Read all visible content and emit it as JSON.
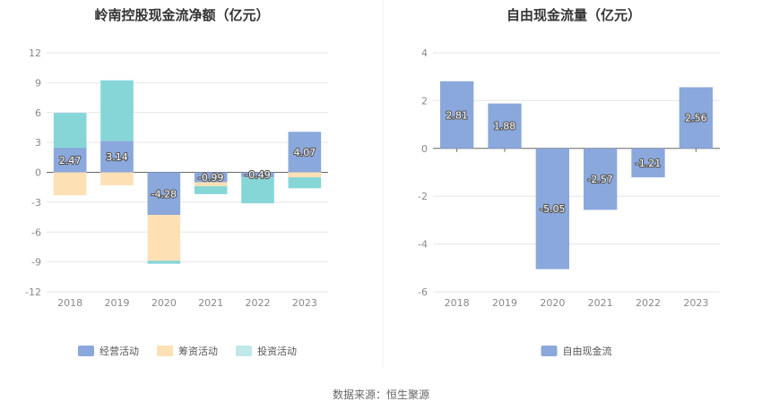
{
  "source": "数据来源：恒生聚源",
  "chart_data": [
    {
      "type": "bar",
      "stacked": true,
      "title": "岭南控股现金流净额（亿元）",
      "categories": [
        "2018",
        "2019",
        "2020",
        "2021",
        "2022",
        "2023"
      ],
      "ylim": [
        -12,
        12
      ],
      "yticks": [
        12,
        9,
        6,
        3,
        0,
        -3,
        -6,
        -9,
        -12
      ],
      "grid": true,
      "legend_position": "bottom",
      "series": [
        {
          "name": "经营活动",
          "color": "#8aa8dc",
          "values": [
            2.47,
            3.14,
            -4.28,
            -0.99,
            -0.49,
            4.07
          ],
          "labels": [
            "2.47",
            "3.14",
            "-4.28",
            "-0.99",
            "-0.49",
            "4.07"
          ]
        },
        {
          "name": "筹资活动",
          "color": "#fde0b4",
          "values": [
            -2.3,
            -1.3,
            -4.6,
            -0.4,
            -0.02,
            -0.5
          ],
          "labels": []
        },
        {
          "name": "投资活动",
          "color": "#86d6d8",
          "values": [
            3.5,
            6.1,
            -0.3,
            -0.8,
            -2.6,
            -1.1
          ],
          "labels": []
        }
      ]
    },
    {
      "type": "bar",
      "title": "自由现金流量（亿元）",
      "categories": [
        "2018",
        "2019",
        "2020",
        "2021",
        "2022",
        "2023"
      ],
      "ylim": [
        -6,
        4
      ],
      "yticks": [
        4,
        2,
        0,
        -2,
        -4,
        -6
      ],
      "grid": true,
      "legend_position": "bottom",
      "series": [
        {
          "name": "自由现金流",
          "color": "#8aa8dc",
          "values": [
            2.81,
            1.88,
            -5.05,
            -2.57,
            -1.21,
            2.56
          ],
          "labels": [
            "2.81",
            "1.88",
            "-5.05",
            "-2.57",
            "-1.21",
            "2.56"
          ]
        }
      ]
    }
  ]
}
